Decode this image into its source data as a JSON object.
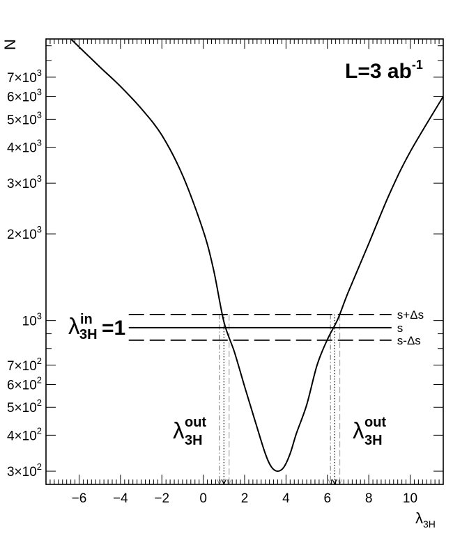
{
  "chart_data": {
    "type": "line",
    "title": "",
    "xlabel": "λ",
    "xlabel_sub": "3H",
    "ylabel": "N",
    "y_scale": "log",
    "xlim": [
      -7.6,
      11.6
    ],
    "ylim": [
      270,
      9500
    ],
    "x_ticks": [
      {
        "v": -6,
        "label": "−6"
      },
      {
        "v": -4,
        "label": "−4"
      },
      {
        "v": -2,
        "label": "−2"
      },
      {
        "v": 0,
        "label": "0"
      },
      {
        "v": 2,
        "label": "2"
      },
      {
        "v": 4,
        "label": "4"
      },
      {
        "v": 6,
        "label": "6"
      },
      {
        "v": 8,
        "label": "8"
      },
      {
        "v": 10,
        "label": "10"
      }
    ],
    "y_ticks": [
      {
        "v": 300,
        "m": "3",
        "e": "2"
      },
      {
        "v": 400,
        "m": "4",
        "e": "2"
      },
      {
        "v": 500,
        "m": "5",
        "e": "2"
      },
      {
        "v": 600,
        "m": "6",
        "e": "2"
      },
      {
        "v": 700,
        "m": "7",
        "e": "2"
      },
      {
        "v": 1000,
        "m": "",
        "e": "3"
      },
      {
        "v": 2000,
        "m": "2",
        "e": "3"
      },
      {
        "v": 3000,
        "m": "3",
        "e": "3"
      },
      {
        "v": 4000,
        "m": "4",
        "e": "3"
      },
      {
        "v": 5000,
        "m": "5",
        "e": "3"
      },
      {
        "v": 6000,
        "m": "6",
        "e": "3"
      },
      {
        "v": 7000,
        "m": "7",
        "e": "3"
      }
    ],
    "series": [
      {
        "x": [
          -6.4,
          -5,
          -4,
          -3,
          -2,
          -1,
          0,
          0.5,
          1,
          1.5,
          2,
          2.5,
          3,
          3.3,
          3.6,
          3.9,
          4.2,
          4.5,
          5,
          5.5,
          6,
          6.5,
          7,
          8,
          9,
          10,
          11.6
        ],
        "y": [
          9500,
          7600,
          6500,
          5450,
          4400,
          3200,
          2050,
          1500,
          990,
          780,
          590,
          450,
          345,
          310,
          300,
          310,
          345,
          405,
          510,
          700,
          860,
          1010,
          1250,
          1850,
          2750,
          3850,
          6000
        ]
      }
    ],
    "reference_lines": [
      {
        "label": "s+Δs",
        "y": 1050,
        "x_from": -3.6,
        "x_to": 9.1,
        "style": "dashed"
      },
      {
        "label": "s",
        "y": 945,
        "x_from": -3.6,
        "x_to": 9.1,
        "style": "solid"
      },
      {
        "label": "s-Δs",
        "y": 855,
        "x_from": -3.6,
        "x_to": 9.1,
        "style": "dashed"
      }
    ],
    "vertical_markers": [
      {
        "x": 0.78,
        "style": "dashdot",
        "color": "#888888"
      },
      {
        "x": 1.0,
        "style": "dotted",
        "color": "#000000"
      },
      {
        "x": 1.25,
        "style": "dashed",
        "color": "#aaaaaa"
      },
      {
        "x": 6.15,
        "style": "dashdot",
        "color": "#888888"
      },
      {
        "x": 6.35,
        "style": "dotted",
        "color": "#000000"
      },
      {
        "x": 6.6,
        "style": "dashed",
        "color": "#aaaaaa"
      }
    ],
    "annotations": {
      "luminosity": {
        "base": "L=3 ab",
        "sup": "-1"
      },
      "lambda_in": {
        "symbol": "λ",
        "sup": "in",
        "sub": "3H",
        "suffix": "=1"
      },
      "lambda_out_left": {
        "symbol": "λ",
        "sup": "out",
        "sub": "3H"
      },
      "lambda_out_right": {
        "symbol": "λ",
        "sup": "out",
        "sub": "3H"
      }
    }
  }
}
